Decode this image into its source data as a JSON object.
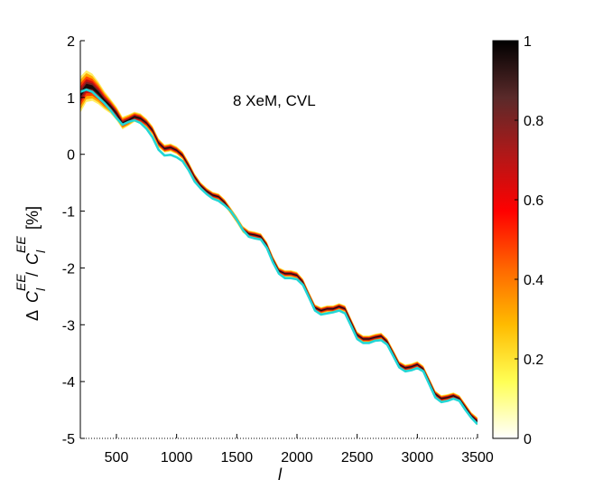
{
  "chart_data": {
    "type": "line",
    "title": "",
    "annotation": "8 XeM,  CVL",
    "xlabel": "l",
    "ylabel": {
      "delta": "Δ",
      "C": "C",
      "sub": "l",
      "sup": "EE",
      "slash": "/",
      "unit": "[%]"
    },
    "xlim": [
      200,
      3500
    ],
    "ylim": [
      -5,
      2
    ],
    "xticks": [
      500,
      1000,
      1500,
      2000,
      2500,
      3000,
      3500
    ],
    "xtick_labels": [
      "500",
      "1000",
      "1500",
      "2000",
      "2500",
      "3000",
      "3500"
    ],
    "yticks": [
      -5,
      -4,
      -3,
      -2,
      -1,
      0,
      1,
      2
    ],
    "ytick_labels": [
      "-5",
      "-4",
      "-3",
      "-2",
      "-1",
      "0",
      "1",
      "2"
    ],
    "colorbar": {
      "min": 0,
      "max": 1,
      "ticks": [
        0,
        0.2,
        0.4,
        0.6,
        0.8,
        1
      ],
      "tick_labels": [
        "0",
        "0.2",
        "0.4",
        "0.6",
        "0.8",
        "1"
      ],
      "colormap": [
        "#ffffff",
        "#ffff55",
        "#ffbb00",
        "#ff6600",
        "#ff0000",
        "#b01818",
        "#5a2a2a",
        "#000000"
      ]
    },
    "series": [
      {
        "name": "posterior density band",
        "x": [
          200,
          250,
          300,
          350,
          400,
          450,
          500,
          550,
          600,
          650,
          700,
          750,
          800,
          850,
          900,
          950,
          1000,
          1050,
          1100,
          1150,
          1200,
          1250,
          1300,
          1350,
          1400,
          1450,
          1500,
          1550,
          1600,
          1650,
          1700,
          1750,
          1800,
          1850,
          1900,
          1950,
          2000,
          2050,
          2100,
          2150,
          2200,
          2250,
          2300,
          2350,
          2400,
          2450,
          2500,
          2550,
          2600,
          2650,
          2700,
          2750,
          2800,
          2850,
          2900,
          2950,
          3000,
          3050,
          3100,
          3150,
          3200,
          3250,
          3300,
          3350,
          3400,
          3450,
          3500
        ],
        "y": [
          1.05,
          1.2,
          1.18,
          1.08,
          0.95,
          0.85,
          0.72,
          0.55,
          0.6,
          0.66,
          0.63,
          0.55,
          0.42,
          0.2,
          0.1,
          0.12,
          0.07,
          -0.02,
          -0.2,
          -0.4,
          -0.55,
          -0.65,
          -0.72,
          -0.75,
          -0.85,
          -1.0,
          -1.15,
          -1.32,
          -1.4,
          -1.42,
          -1.45,
          -1.6,
          -1.85,
          -2.05,
          -2.1,
          -2.1,
          -2.13,
          -2.25,
          -2.48,
          -2.7,
          -2.75,
          -2.72,
          -2.72,
          -2.68,
          -2.72,
          -2.95,
          -3.18,
          -3.25,
          -3.25,
          -3.22,
          -3.2,
          -3.3,
          -3.5,
          -3.7,
          -3.76,
          -3.74,
          -3.7,
          -3.78,
          -4.0,
          -4.22,
          -4.3,
          -4.28,
          -4.25,
          -4.3,
          -4.45,
          -4.6,
          -4.7
        ],
        "halfwidth": [
          0.32,
          0.28,
          0.24,
          0.2,
          0.16,
          0.13,
          0.12,
          0.11,
          0.1,
          0.09,
          0.09,
          0.08,
          0.08,
          0.08,
          0.07,
          0.07,
          0.07,
          0.07,
          0.07,
          0.06,
          0.06,
          0.06,
          0.06,
          0.06,
          0.06,
          0.06,
          0.06,
          0.06,
          0.06,
          0.06,
          0.06,
          0.06,
          0.06,
          0.06,
          0.06,
          0.06,
          0.06,
          0.06,
          0.06,
          0.06,
          0.06,
          0.06,
          0.06,
          0.06,
          0.06,
          0.06,
          0.06,
          0.06,
          0.06,
          0.06,
          0.06,
          0.06,
          0.06,
          0.06,
          0.06,
          0.06,
          0.06,
          0.06,
          0.06,
          0.06,
          0.06,
          0.06,
          0.06,
          0.06,
          0.06,
          0.06,
          0.07
        ]
      },
      {
        "name": "fiducial",
        "color": "#22d6d6",
        "x": [
          200,
          250,
          300,
          350,
          400,
          450,
          500,
          550,
          600,
          650,
          700,
          750,
          800,
          850,
          900,
          950,
          1000,
          1050,
          1100,
          1150,
          1200,
          1250,
          1300,
          1350,
          1400,
          1450,
          1500,
          1550,
          1600,
          1650,
          1700,
          1750,
          1800,
          1850,
          1900,
          1950,
          2000,
          2050,
          2100,
          2150,
          2200,
          2250,
          2300,
          2350,
          2400,
          2450,
          2500,
          2550,
          2600,
          2650,
          2700,
          2750,
          2800,
          2850,
          2900,
          2950,
          3000,
          3050,
          3100,
          3150,
          3200,
          3250,
          3300,
          3350,
          3400,
          3450,
          3500
        ],
        "y": [
          1.1,
          1.14,
          1.1,
          1.0,
          0.9,
          0.78,
          0.64,
          0.52,
          0.57,
          0.6,
          0.55,
          0.45,
          0.3,
          0.08,
          -0.02,
          -0.01,
          -0.05,
          -0.12,
          -0.28,
          -0.48,
          -0.6,
          -0.7,
          -0.78,
          -0.82,
          -0.9,
          -1.0,
          -1.15,
          -1.33,
          -1.45,
          -1.48,
          -1.5,
          -1.65,
          -1.9,
          -2.1,
          -2.18,
          -2.18,
          -2.2,
          -2.3,
          -2.52,
          -2.75,
          -2.82,
          -2.8,
          -2.78,
          -2.75,
          -2.8,
          -3.02,
          -3.25,
          -3.32,
          -3.32,
          -3.28,
          -3.27,
          -3.35,
          -3.55,
          -3.75,
          -3.82,
          -3.8,
          -3.76,
          -3.82,
          -4.05,
          -4.28,
          -4.36,
          -4.34,
          -4.3,
          -4.34,
          -4.5,
          -4.64,
          -4.75
        ]
      }
    ]
  }
}
